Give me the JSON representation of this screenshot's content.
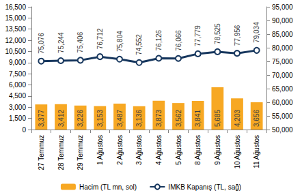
{
  "chart_data": {
    "type": "bar",
    "categories": [
      "27 Temmuz",
      "28 Temmuz",
      "29 Temmuz",
      "1 Ağustos",
      "2 Ağustos",
      "3 Ağustos",
      "4 Ağustos",
      "5 Ağustos",
      "8 Ağustos",
      "9 Ağustos",
      "10 Ağustos",
      "11 Ağustos"
    ],
    "series": [
      {
        "name": "Hacim (TL mn, sol)",
        "type": "bar",
        "color": "#f7a823",
        "values": [
          3377,
          3412,
          3226,
          3153,
          3487,
          3136,
          3873,
          3562,
          3841,
          5685,
          4203,
          3656
        ],
        "value_labels": [
          "3,377",
          "3,412",
          "3,226",
          "3,153",
          "3,487",
          "3,136",
          "3,873",
          "3,562",
          "3,841",
          "5,685",
          "4,203",
          "3,656"
        ]
      },
      {
        "name": "IMKB Kapanış (TL, sağ)",
        "type": "line",
        "axis": "y2",
        "color": "#17375e",
        "marker": "circle",
        "line_style": "solid",
        "values": [
          75076,
          75244,
          75406,
          76712,
          75804,
          74552,
          76126,
          76066,
          77779,
          78525,
          77956,
          79034
        ],
        "value_labels": [
          "75,076",
          "75,244",
          "75,406",
          "76,712",
          "75,804",
          "74,552",
          "76,126",
          "76,066",
          "77,779",
          "78,525",
          "77,956",
          "79,034"
        ]
      }
    ],
    "ylim": [
      0,
      16500
    ],
    "yticks": [
      0,
      {
        "value": 1500,
        "label": "1,500"
      },
      {
        "value": 3000,
        "label": "3,000"
      },
      {
        "value": 4500,
        "label": "4,500"
      },
      {
        "value": 6000,
        "label": "6,000"
      },
      {
        "value": 7500,
        "label": "7,500"
      },
      {
        "value": 9000,
        "label": "9,000"
      },
      {
        "value": 10500,
        "label": "10,500"
      },
      {
        "value": 12000,
        "label": "12,000"
      },
      {
        "value": 13500,
        "label": "13,500"
      },
      {
        "value": 15000,
        "label": "15,000"
      },
      {
        "value": 16500,
        "label": "16,500"
      }
    ],
    "y2lim": [
      50000,
      95000
    ],
    "y2ticks": [
      {
        "value": 50000,
        "label": "50,000"
      },
      {
        "value": 55000,
        "label": "55,000"
      },
      {
        "value": 60000,
        "label": "60,000"
      },
      {
        "value": 65000,
        "label": "65,000"
      },
      {
        "value": 70000,
        "label": "70,000"
      },
      {
        "value": 75000,
        "label": "75,000"
      },
      {
        "value": 80000,
        "label": "80,000"
      },
      {
        "value": 85000,
        "label": "85,000"
      },
      {
        "value": 90000,
        "label": "90,000"
      },
      {
        "value": 95000,
        "label": "95,000"
      }
    ],
    "grid": false,
    "legend": "bottom",
    "data_labels": true
  }
}
